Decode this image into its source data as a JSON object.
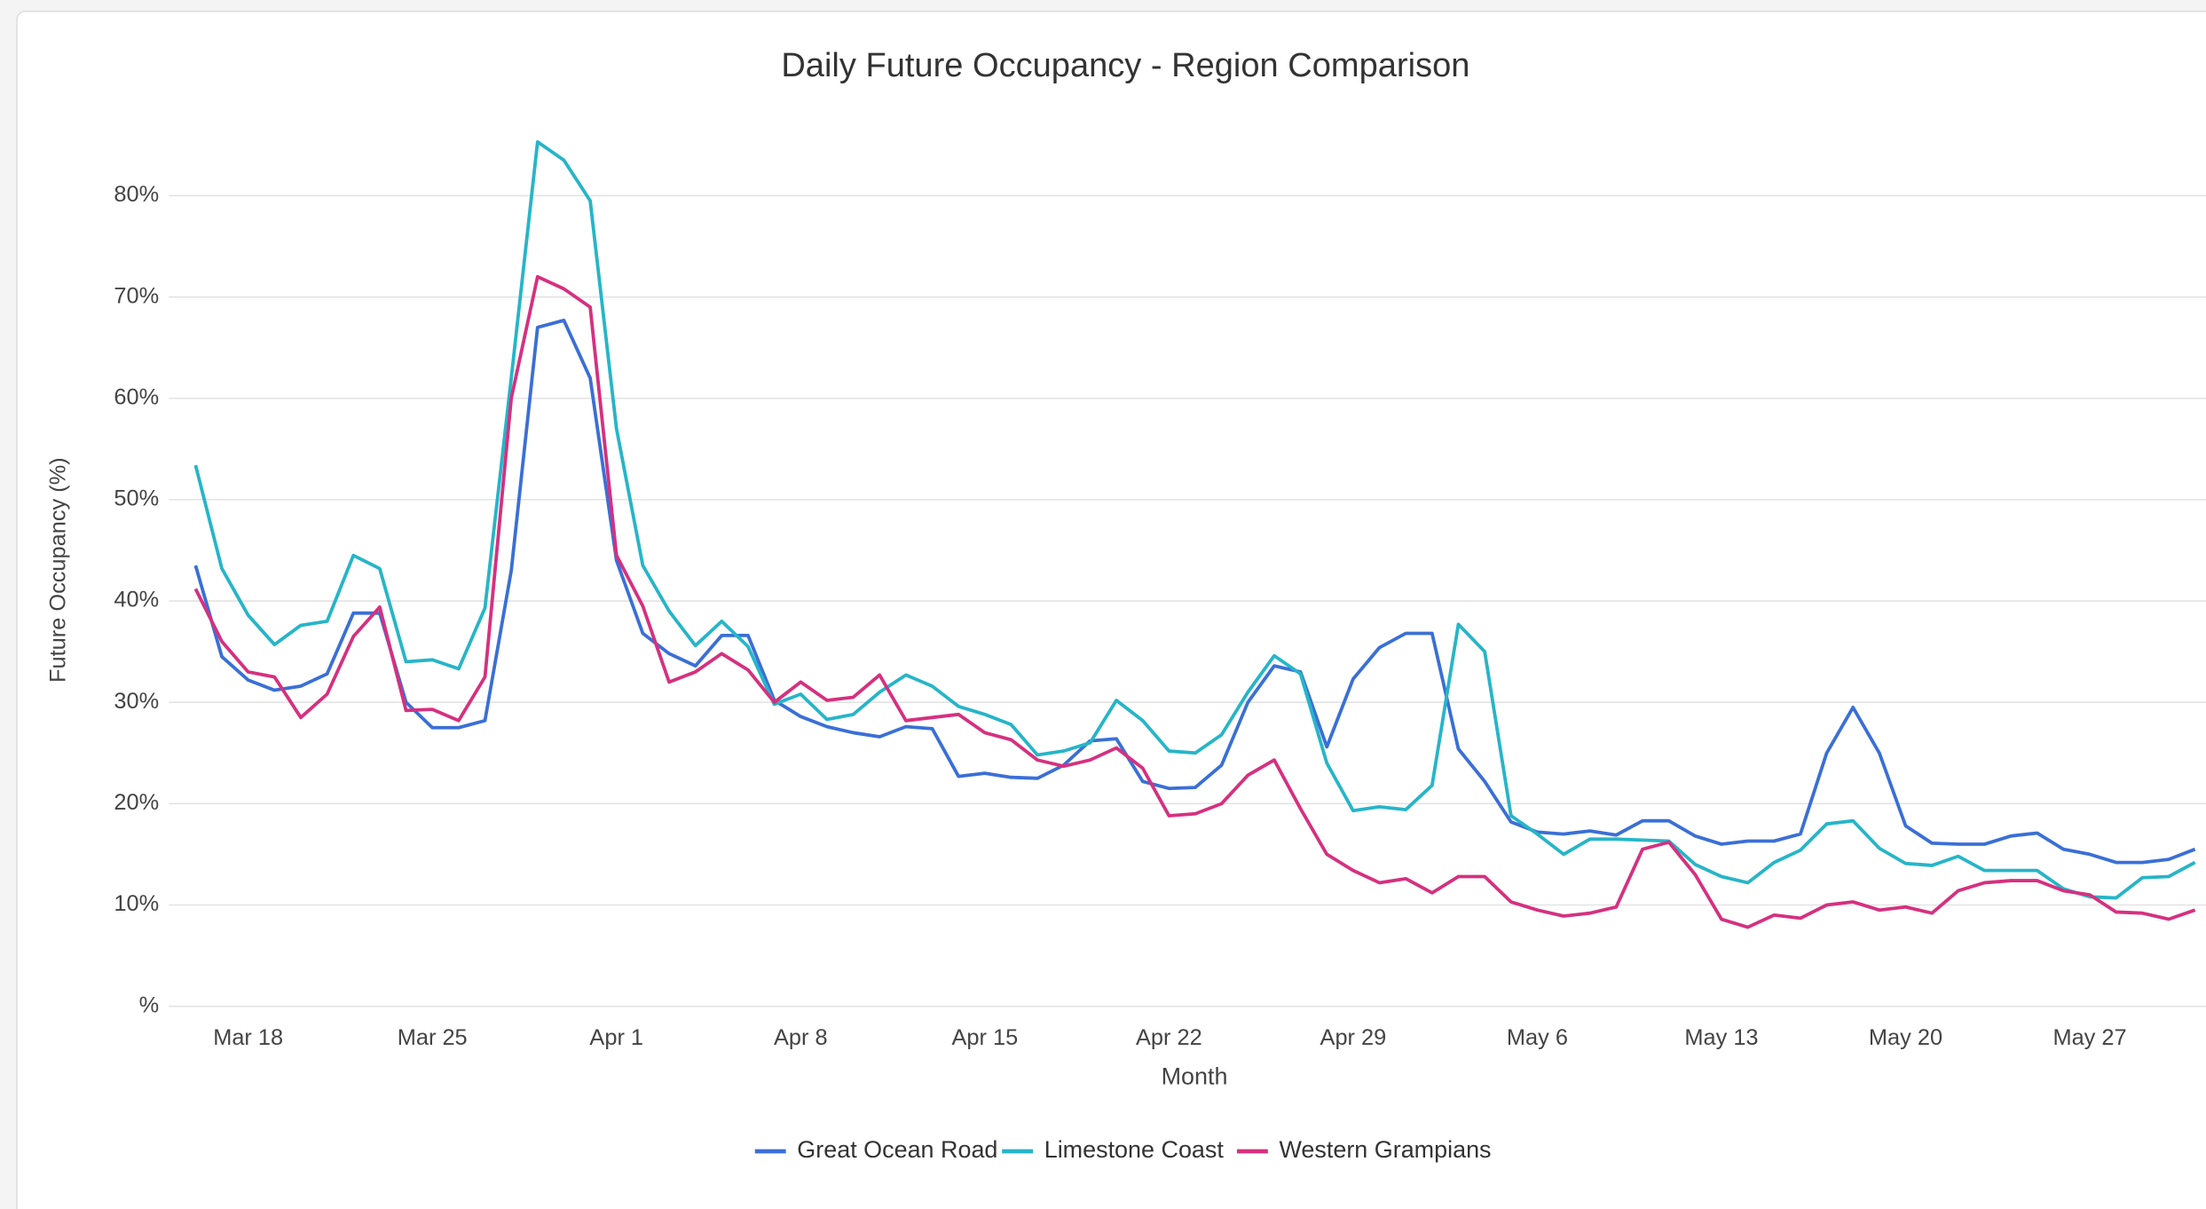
{
  "chart_data": {
    "type": "line",
    "title": "Daily Future Occupancy - Region Comparison",
    "xlabel": "Month",
    "ylabel": "Future Occupancy (%)",
    "categories": [
      null,
      null,
      "Mar 18",
      null,
      null,
      null,
      null,
      null,
      null,
      "Mar 25",
      null,
      null,
      null,
      null,
      null,
      null,
      "Apr 1",
      null,
      null,
      null,
      null,
      null,
      null,
      "Apr 8",
      null,
      null,
      null,
      null,
      null,
      null,
      "Apr 15",
      null,
      null,
      null,
      null,
      null,
      null,
      "Apr 22",
      null,
      null,
      null,
      null,
      null,
      null,
      "Apr 29",
      null,
      null,
      null,
      null,
      null,
      null,
      "May 6",
      null,
      null,
      null,
      null,
      null,
      null,
      "May 13",
      null,
      null,
      null,
      null,
      null,
      null,
      "May 20",
      null,
      null,
      null,
      null,
      null,
      null,
      "May 27",
      null,
      null,
      null,
      null
    ],
    "series": [
      {
        "name": "Great Ocean Road",
        "color": "#3a6fd6",
        "values": [
          43.5,
          34.5,
          32.2,
          31.2,
          31.6,
          32.8,
          38.8,
          38.8,
          30,
          27.5,
          27.5,
          28.2,
          43,
          67,
          67.7,
          62,
          44,
          36.8,
          34.8,
          33.6,
          36.6,
          36.6,
          30.2,
          28.6,
          27.6,
          27,
          26.6,
          27.6,
          27.4,
          22.7,
          23,
          22.6,
          22.5,
          23.8,
          26.2,
          26.4,
          22.2,
          21.5,
          21.6,
          23.8,
          30,
          33.6,
          33,
          25.6,
          32.3,
          35.4,
          36.8,
          36.8,
          25.4,
          22.2,
          18.2,
          17.2,
          17,
          17.3,
          16.9,
          18.3,
          18.3,
          16.8,
          16,
          16.3,
          16.3,
          17,
          25,
          29.5,
          25,
          17.8,
          16.1,
          16,
          16,
          16.8,
          17.1,
          15.5,
          15,
          14.2,
          14.2,
          14.5,
          15.5
        ]
      },
      {
        "name": "Limestone Coast",
        "color": "#26b5c8",
        "values": [
          53.4,
          43.2,
          38.6,
          35.7,
          37.6,
          38,
          44.5,
          43.2,
          34,
          34.2,
          33.3,
          39.3,
          62,
          85.3,
          83.5,
          79.5,
          57,
          43.5,
          39,
          35.6,
          38,
          35.5,
          29.8,
          30.8,
          28.3,
          28.8,
          31,
          32.7,
          31.6,
          29.6,
          28.8,
          27.8,
          24.8,
          25.2,
          26,
          30.2,
          28.2,
          25.2,
          25,
          26.8,
          31,
          34.6,
          32.8,
          24,
          19.3,
          19.7,
          19.4,
          21.8,
          37.7,
          35,
          18.8,
          17,
          15,
          16.5,
          16.5,
          16.4,
          16.3,
          14,
          12.8,
          12.2,
          14.2,
          15.4,
          18,
          18.3,
          15.6,
          14.1,
          13.9,
          14.8,
          13.4,
          13.4,
          13.4,
          11.6,
          10.8,
          10.7,
          12.7,
          12.8,
          14.2
        ]
      },
      {
        "name": "Western Grampians",
        "color": "#d6307f",
        "values": [
          41.2,
          36,
          33,
          32.5,
          28.5,
          30.8,
          36.5,
          39.4,
          29.2,
          29.3,
          28.2,
          32.5,
          60,
          72,
          70.8,
          69,
          44.5,
          39.5,
          32,
          33,
          34.8,
          33.2,
          30,
          32,
          30.2,
          30.5,
          32.7,
          28.2,
          28.5,
          28.8,
          27,
          26.3,
          24.3,
          23.7,
          24.3,
          25.5,
          23.5,
          18.8,
          19,
          20,
          22.8,
          24.3,
          19.5,
          15,
          13.4,
          12.2,
          12.6,
          11.2,
          12.8,
          12.8,
          10.3,
          9.5,
          8.9,
          9.2,
          9.8,
          15.5,
          16.2,
          13,
          8.6,
          7.8,
          9,
          8.7,
          10,
          10.3,
          9.5,
          9.8,
          9.2,
          11.4,
          12.2,
          12.4,
          12.4,
          11.4,
          11,
          9.3,
          9.2,
          8.6,
          9.5
        ]
      }
    ],
    "ylim": [
      0,
      90
    ],
    "yticks": [
      {
        "value": 0,
        "label": "%"
      },
      {
        "value": 10,
        "label": "10%"
      },
      {
        "value": 20,
        "label": "20%"
      },
      {
        "value": 30,
        "label": "30%"
      },
      {
        "value": 40,
        "label": "40%"
      },
      {
        "value": 50,
        "label": "50%"
      },
      {
        "value": 60,
        "label": "60%"
      },
      {
        "value": 70,
        "label": "70%"
      },
      {
        "value": 80,
        "label": "80%"
      }
    ],
    "grid": true,
    "legend": "bottom"
  }
}
